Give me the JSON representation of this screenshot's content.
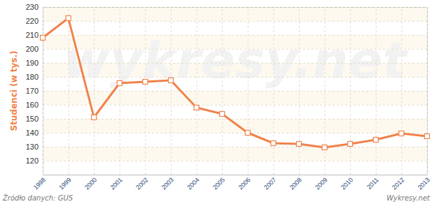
{
  "chart_data": {
    "type": "line",
    "y_label": "Studenci (w tys.)",
    "annotations": [
      "Źródło danych: GUS",
      "Wykresy.net",
      "wykresy.net"
    ],
    "x": [
      1998,
      1999,
      2000,
      2001,
      2002,
      2003,
      2004,
      2005,
      2006,
      2007,
      2008,
      2009,
      2010,
      2011,
      2012,
      2013
    ],
    "values": [
      208,
      222,
      151,
      175.5,
      176.5,
      177.5,
      158,
      153.5,
      140,
      132.5,
      132,
      129.5,
      132,
      135,
      139.5,
      137.5
    ],
    "color": "#f0824a",
    "marker": "square",
    "xlim": [
      1998,
      2013
    ],
    "xticks": [
      1998,
      1999,
      2000,
      2001,
      2002,
      2003,
      2004,
      2005,
      2006,
      2007,
      2008,
      2009,
      2010,
      2011,
      2012,
      2013
    ],
    "ylim": [
      110,
      230
    ],
    "yticks": [
      120,
      130,
      140,
      150,
      160,
      170,
      180,
      190,
      200,
      210,
      220,
      230
    ],
    "grid": true
  }
}
